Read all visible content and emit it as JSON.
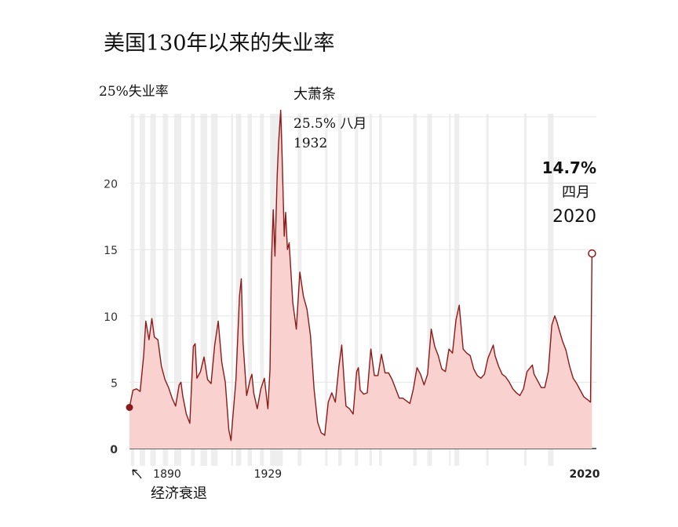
{
  "chart_data": {
    "type": "area",
    "title": "美国130年以来的失业率",
    "ylabel": "25%失业率",
    "yticks": [
      "0",
      "5",
      "10",
      "15",
      "20"
    ],
    "ylim": [
      0,
      26
    ],
    "xlim": [
      1890,
      2020
    ],
    "xticks": [
      {
        "x": 1890,
        "label": "1890"
      },
      {
        "x": 1929,
        "label": "1929"
      },
      {
        "x": 2020,
        "label": "2020"
      }
    ],
    "series": [
      {
        "values": [
          {
            "x": 1890.0,
            "y": 3.1
          },
          {
            "x": 1891.0,
            "y": 4.4
          },
          {
            "x": 1892.0,
            "y": 4.5
          },
          {
            "x": 1893.0,
            "y": 4.3
          },
          {
            "x": 1894.0,
            "y": 7.0
          },
          {
            "x": 1894.6,
            "y": 9.6
          },
          {
            "x": 1895.5,
            "y": 8.2
          },
          {
            "x": 1896.3,
            "y": 9.8
          },
          {
            "x": 1897.0,
            "y": 8.4
          },
          {
            "x": 1898.0,
            "y": 8.2
          },
          {
            "x": 1899.0,
            "y": 6.2
          },
          {
            "x": 1900.0,
            "y": 5.2
          },
          {
            "x": 1901.0,
            "y": 4.6
          },
          {
            "x": 1902.0,
            "y": 3.8
          },
          {
            "x": 1903.0,
            "y": 3.2
          },
          {
            "x": 1904.0,
            "y": 4.8
          },
          {
            "x": 1904.5,
            "y": 5.0
          },
          {
            "x": 1905.0,
            "y": 4.0
          },
          {
            "x": 1906.0,
            "y": 2.6
          },
          {
            "x": 1907.0,
            "y": 1.9
          },
          {
            "x": 1908.0,
            "y": 7.7
          },
          {
            "x": 1908.5,
            "y": 7.9
          },
          {
            "x": 1909.0,
            "y": 5.3
          },
          {
            "x": 1910.0,
            "y": 5.8
          },
          {
            "x": 1911.0,
            "y": 6.9
          },
          {
            "x": 1912.0,
            "y": 5.2
          },
          {
            "x": 1913.0,
            "y": 4.9
          },
          {
            "x": 1914.0,
            "y": 7.8
          },
          {
            "x": 1915.0,
            "y": 9.6
          },
          {
            "x": 1916.0,
            "y": 6.5
          },
          {
            "x": 1917.0,
            "y": 5.0
          },
          {
            "x": 1918.0,
            "y": 1.4
          },
          {
            "x": 1918.6,
            "y": 0.6
          },
          {
            "x": 1919.0,
            "y": 2.0
          },
          {
            "x": 1920.0,
            "y": 5.2
          },
          {
            "x": 1921.0,
            "y": 11.5
          },
          {
            "x": 1921.5,
            "y": 12.8
          },
          {
            "x": 1922.0,
            "y": 8.0
          },
          {
            "x": 1923.0,
            "y": 4.0
          },
          {
            "x": 1924.0,
            "y": 5.2
          },
          {
            "x": 1924.5,
            "y": 5.6
          },
          {
            "x": 1925.0,
            "y": 4.2
          },
          {
            "x": 1926.0,
            "y": 3.0
          },
          {
            "x": 1927.0,
            "y": 4.5
          },
          {
            "x": 1928.0,
            "y": 5.3
          },
          {
            "x": 1929.0,
            "y": 3.0
          },
          {
            "x": 1929.6,
            "y": 6.0
          },
          {
            "x": 1930.0,
            "y": 14.0
          },
          {
            "x": 1930.5,
            "y": 18.0
          },
          {
            "x": 1931.0,
            "y": 14.5
          },
          {
            "x": 1931.6,
            "y": 20.5
          },
          {
            "x": 1932.0,
            "y": 23.0
          },
          {
            "x": 1932.6,
            "y": 25.5
          },
          {
            "x": 1933.0,
            "y": 22.0
          },
          {
            "x": 1933.6,
            "y": 16.0
          },
          {
            "x": 1934.0,
            "y": 17.8
          },
          {
            "x": 1934.5,
            "y": 15.0
          },
          {
            "x": 1935.0,
            "y": 15.5
          },
          {
            "x": 1936.0,
            "y": 11.0
          },
          {
            "x": 1937.0,
            "y": 9.0
          },
          {
            "x": 1938.0,
            "y": 13.3
          },
          {
            "x": 1939.0,
            "y": 11.5
          },
          {
            "x": 1940.0,
            "y": 10.5
          },
          {
            "x": 1941.0,
            "y": 8.5
          },
          {
            "x": 1942.0,
            "y": 4.5
          },
          {
            "x": 1943.0,
            "y": 2.0
          },
          {
            "x": 1944.0,
            "y": 1.2
          },
          {
            "x": 1945.0,
            "y": 1.0
          },
          {
            "x": 1946.0,
            "y": 3.5
          },
          {
            "x": 1947.0,
            "y": 4.2
          },
          {
            "x": 1948.0,
            "y": 3.5
          },
          {
            "x": 1949.0,
            "y": 6.2
          },
          {
            "x": 1949.8,
            "y": 7.8
          },
          {
            "x": 1950.5,
            "y": 5.0
          },
          {
            "x": 1951.0,
            "y": 3.2
          },
          {
            "x": 1952.0,
            "y": 3.0
          },
          {
            "x": 1953.0,
            "y": 2.6
          },
          {
            "x": 1954.0,
            "y": 5.8
          },
          {
            "x": 1954.5,
            "y": 6.1
          },
          {
            "x": 1955.0,
            "y": 4.4
          },
          {
            "x": 1956.0,
            "y": 4.1
          },
          {
            "x": 1957.0,
            "y": 4.2
          },
          {
            "x": 1958.0,
            "y": 7.5
          },
          {
            "x": 1959.0,
            "y": 5.5
          },
          {
            "x": 1960.0,
            "y": 5.5
          },
          {
            "x": 1961.0,
            "y": 7.1
          },
          {
            "x": 1962.0,
            "y": 5.7
          },
          {
            "x": 1963.0,
            "y": 5.7
          },
          {
            "x": 1964.0,
            "y": 5.2
          },
          {
            "x": 1965.0,
            "y": 4.5
          },
          {
            "x": 1966.0,
            "y": 3.8
          },
          {
            "x": 1967.0,
            "y": 3.8
          },
          {
            "x": 1968.0,
            "y": 3.6
          },
          {
            "x": 1969.0,
            "y": 3.4
          },
          {
            "x": 1970.0,
            "y": 4.5
          },
          {
            "x": 1971.0,
            "y": 6.1
          },
          {
            "x": 1972.0,
            "y": 5.6
          },
          {
            "x": 1973.0,
            "y": 4.8
          },
          {
            "x": 1974.0,
            "y": 5.6
          },
          {
            "x": 1975.0,
            "y": 9.0
          },
          {
            "x": 1976.0,
            "y": 7.7
          },
          {
            "x": 1977.0,
            "y": 7.0
          },
          {
            "x": 1978.0,
            "y": 6.0
          },
          {
            "x": 1979.0,
            "y": 5.8
          },
          {
            "x": 1980.0,
            "y": 7.5
          },
          {
            "x": 1981.0,
            "y": 7.2
          },
          {
            "x": 1982.0,
            "y": 9.7
          },
          {
            "x": 1982.9,
            "y": 10.8
          },
          {
            "x": 1984.0,
            "y": 7.5
          },
          {
            "x": 1985.0,
            "y": 7.2
          },
          {
            "x": 1986.0,
            "y": 7.0
          },
          {
            "x": 1987.0,
            "y": 6.0
          },
          {
            "x": 1988.0,
            "y": 5.5
          },
          {
            "x": 1989.0,
            "y": 5.3
          },
          {
            "x": 1990.0,
            "y": 5.6
          },
          {
            "x": 1991.0,
            "y": 6.8
          },
          {
            "x": 1992.5,
            "y": 7.8
          },
          {
            "x": 1993.0,
            "y": 7.0
          },
          {
            "x": 1994.0,
            "y": 6.2
          },
          {
            "x": 1995.0,
            "y": 5.6
          },
          {
            "x": 1996.0,
            "y": 5.4
          },
          {
            "x": 1997.0,
            "y": 5.0
          },
          {
            "x": 1998.0,
            "y": 4.5
          },
          {
            "x": 1999.0,
            "y": 4.2
          },
          {
            "x": 2000.0,
            "y": 4.0
          },
          {
            "x": 2001.0,
            "y": 4.5
          },
          {
            "x": 2002.0,
            "y": 5.8
          },
          {
            "x": 2003.5,
            "y": 6.3
          },
          {
            "x": 2004.0,
            "y": 5.6
          },
          {
            "x": 2005.0,
            "y": 5.1
          },
          {
            "x": 2006.0,
            "y": 4.6
          },
          {
            "x": 2007.0,
            "y": 4.6
          },
          {
            "x": 2008.0,
            "y": 5.8
          },
          {
            "x": 2009.0,
            "y": 9.3
          },
          {
            "x": 2009.8,
            "y": 10.0
          },
          {
            "x": 2010.5,
            "y": 9.5
          },
          {
            "x": 2011.0,
            "y": 9.0
          },
          {
            "x": 2012.0,
            "y": 8.1
          },
          {
            "x": 2013.0,
            "y": 7.4
          },
          {
            "x": 2014.0,
            "y": 6.2
          },
          {
            "x": 2015.0,
            "y": 5.3
          },
          {
            "x": 2016.0,
            "y": 4.9
          },
          {
            "x": 2017.0,
            "y": 4.4
          },
          {
            "x": 2018.0,
            "y": 3.9
          },
          {
            "x": 2019.0,
            "y": 3.7
          },
          {
            "x": 2019.9,
            "y": 3.5
          },
          {
            "x": 2020.3,
            "y": 14.7
          }
        ]
      }
    ],
    "recessions": [
      [
        1890.4,
        1891.3
      ],
      [
        1892.9,
        1894.4
      ],
      [
        1895.9,
        1897.4
      ],
      [
        1899.4,
        1900.9
      ],
      [
        1902.6,
        1904.6
      ],
      [
        1907.3,
        1908.4
      ],
      [
        1910.0,
        1911.9
      ],
      [
        1913.0,
        1914.9
      ],
      [
        1918.6,
        1919.2
      ],
      [
        1920.0,
        1921.5
      ],
      [
        1923.3,
        1924.5
      ],
      [
        1926.8,
        1927.9
      ],
      [
        1929.6,
        1933.2
      ],
      [
        1937.4,
        1938.5
      ],
      [
        1945.1,
        1945.8
      ],
      [
        1948.8,
        1949.8
      ],
      [
        1953.5,
        1954.4
      ],
      [
        1957.6,
        1958.3
      ],
      [
        1960.3,
        1961.1
      ],
      [
        1969.9,
        1970.9
      ],
      [
        1973.9,
        1975.2
      ],
      [
        1980.0,
        1980.5
      ],
      [
        1981.5,
        1982.9
      ],
      [
        1990.5,
        1991.2
      ],
      [
        2001.2,
        2001.9
      ],
      [
        2007.9,
        2009.5
      ]
    ],
    "annotations": {
      "depression_label": "大萧条",
      "depression_peak": {
        "value": "25.5% 八月",
        "year": "1932",
        "x": 1932.6,
        "y": 25.5
      },
      "latest": {
        "value": "14.7%",
        "month": "四月",
        "year": "2020",
        "x": 2020.3,
        "y": 14.7
      },
      "recession_label": "经济衰退",
      "start_point": {
        "x": 1890.0,
        "y": 3.1
      }
    },
    "colors": {
      "line": "#8b1a1a",
      "fill": "#f9d2cf",
      "recession": "#eeeeee",
      "grid": "#e6e6e6",
      "axis": "#333333"
    }
  }
}
